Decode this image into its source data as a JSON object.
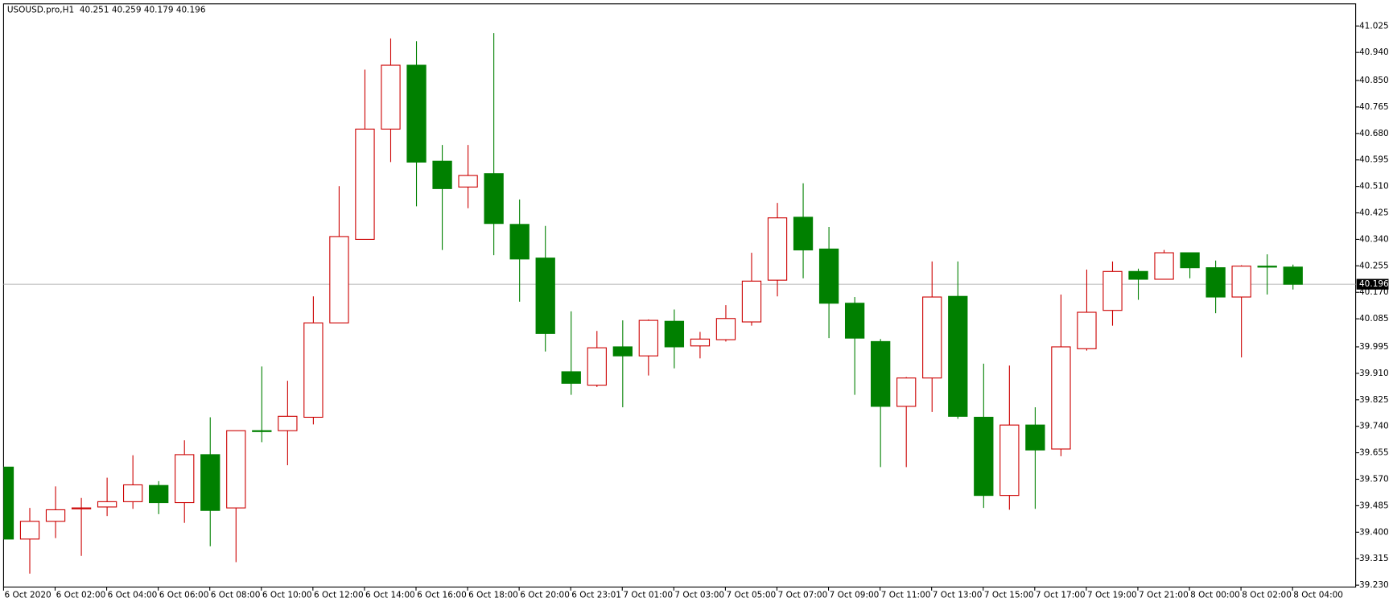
{
  "chart_data": {
    "type": "candlestick",
    "title": "USOUSD.pro,H1",
    "categories": [
      "6 Oct 2020",
      null,
      "6 Oct 02:00",
      null,
      "6 Oct 04:00",
      null,
      "6 Oct 06:00",
      null,
      "6 Oct 08:00",
      null,
      "6 Oct 10:00",
      null,
      "6 Oct 12:00",
      null,
      "6 Oct 14:00",
      null,
      "6 Oct 16:00",
      null,
      "6 Oct 18:00",
      null,
      "6 Oct 20:00",
      null,
      "6 Oct 23:01",
      null,
      "7 Oct 01:00",
      null,
      "7 Oct 03:00",
      null,
      "7 Oct 05:00",
      null,
      "7 Oct 07:00",
      null,
      "7 Oct 09:00",
      null,
      "7 Oct 11:00",
      null,
      "7 Oct 13:00",
      null,
      "7 Oct 15:00",
      null,
      "7 Oct 17:00",
      null,
      "7 Oct 19:00",
      null,
      "7 Oct 21:00",
      null,
      "8 Oct 00:00",
      null,
      "8 Oct 02:00",
      null,
      "8 Oct 04:00"
    ],
    "open": [
      39.609,
      39.378,
      39.435,
      39.475,
      39.481,
      39.498,
      39.55,
      39.495,
      39.649,
      39.478,
      39.726,
      39.726,
      39.769,
      40.072,
      40.34,
      40.694,
      40.899,
      40.591,
      40.508,
      40.551,
      40.388,
      40.28,
      39.915,
      39.872,
      39.995,
      39.966,
      40.077,
      39.998,
      40.018,
      40.075,
      40.209,
      40.411,
      40.309,
      40.135,
      40.012,
      39.804,
      39.895,
      40.157,
      39.769,
      39.518,
      39.744,
      39.667,
      39.989,
      40.112,
      40.237,
      40.212,
      40.297,
      40.249,
      40.155,
      40.254,
      40.251
    ],
    "high": [
      39.609,
      39.478,
      39.547,
      39.51,
      39.575,
      39.647,
      39.564,
      39.695,
      39.769,
      39.726,
      39.932,
      39.886,
      40.157,
      40.511,
      40.885,
      40.985,
      40.976,
      40.643,
      40.643,
      41.002,
      40.468,
      40.383,
      40.109,
      40.046,
      40.08,
      40.083,
      40.115,
      40.043,
      40.129,
      40.297,
      40.457,
      40.52,
      40.38,
      40.155,
      40.02,
      39.898,
      40.269,
      40.269,
      39.941,
      39.935,
      39.801,
      40.163,
      40.243,
      40.269,
      40.246,
      40.306,
      40.297,
      40.272,
      40.257,
      40.292,
      40.259
    ],
    "low": [
      39.378,
      39.267,
      39.381,
      39.324,
      39.452,
      39.475,
      39.458,
      39.43,
      39.355,
      39.304,
      39.689,
      39.615,
      39.746,
      40.072,
      40.34,
      40.588,
      40.446,
      40.306,
      40.44,
      40.289,
      40.14,
      39.98,
      39.841,
      39.866,
      39.801,
      39.903,
      39.926,
      39.958,
      40.012,
      40.063,
      40.157,
      40.215,
      40.023,
      39.841,
      39.609,
      39.609,
      39.786,
      39.764,
      39.478,
      39.472,
      39.475,
      39.644,
      39.983,
      40.063,
      40.146,
      40.215,
      40.215,
      40.103,
      39.961,
      40.163,
      40.179
    ],
    "close": [
      39.378,
      39.435,
      39.472,
      39.478,
      39.498,
      39.552,
      39.495,
      39.649,
      39.47,
      39.726,
      39.723,
      39.772,
      40.072,
      40.349,
      40.694,
      40.899,
      40.588,
      40.503,
      40.545,
      40.391,
      40.277,
      40.038,
      39.878,
      39.992,
      39.966,
      40.08,
      39.995,
      40.02,
      40.086,
      40.206,
      40.409,
      40.306,
      40.135,
      40.023,
      39.804,
      39.895,
      40.155,
      39.772,
      39.518,
      39.744,
      39.664,
      39.995,
      40.106,
      40.237,
      40.212,
      40.297,
      40.249,
      40.155,
      40.254,
      40.251,
      40.196
    ],
    "up_color": "#cc0000",
    "down_color": "#008000",
    "ylim": [
      39.224,
      41.096
    ],
    "yticks": [
      41.025,
      {
        "value": 40.94,
        "label": "40.940"
      },
      {
        "value": 40.85,
        "label": "40.850"
      },
      40.765,
      {
        "value": 40.68,
        "label": "40.680"
      },
      40.595,
      {
        "value": 40.51,
        "label": "40.510"
      },
      40.425,
      {
        "value": 40.34,
        "label": "40.340"
      },
      40.255,
      {
        "value": 40.17,
        "label": "40.170"
      },
      40.085,
      39.995,
      {
        "value": 39.91,
        "label": "39.910"
      },
      39.825,
      {
        "value": 39.74,
        "label": "39.740"
      },
      39.655,
      {
        "value": 39.57,
        "label": "39.570"
      },
      39.485,
      {
        "value": 39.4,
        "label": "39.400"
      },
      39.315,
      {
        "value": 39.23,
        "label": "39.230"
      }
    ]
  }
}
